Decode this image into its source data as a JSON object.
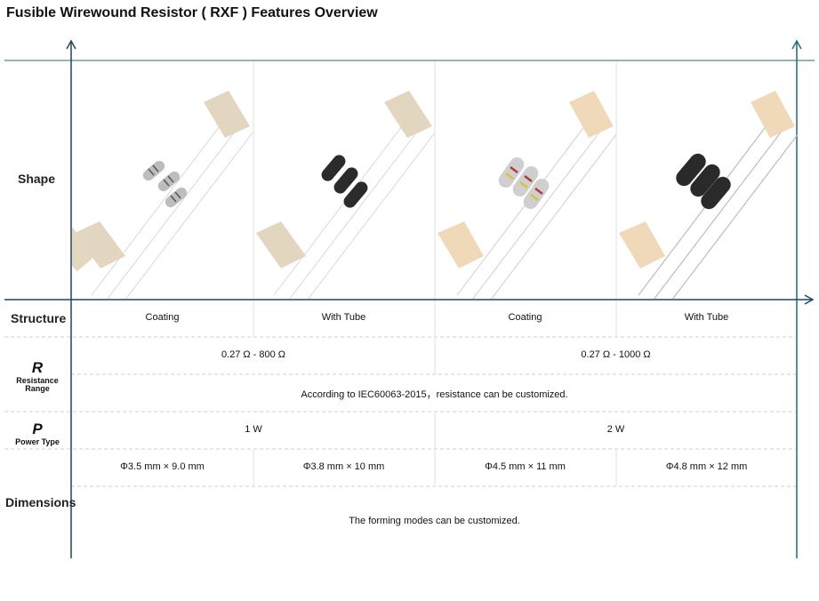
{
  "title": "Fusible Wirewound Resistor ( RXF ) Features Overview",
  "labels": {
    "shape": "Shape",
    "structure": "Structure",
    "resistance_symbol": "R",
    "resistance_line1": "Resistance",
    "resistance_line2": "Range",
    "power_symbol": "P",
    "power_label": "Power Type",
    "dimensions": "Dimensions"
  },
  "structure": [
    "Coating",
    "With Tube",
    "Coating",
    "With Tube"
  ],
  "resistance": [
    "0.27 Ω - 800 Ω",
    "0.27 Ω - 1000 Ω"
  ],
  "resistance_note": "According to IEC60063-2015，resistance can be customized.",
  "power": [
    "1 W",
    "2 W"
  ],
  "dimensions": [
    "Φ3.5 mm × 9.0 mm",
    "Φ3.8 mm × 10 mm",
    "Φ4.5 mm × 11 mm",
    "Φ4.8 mm × 12 mm"
  ],
  "dimensions_note": "The forming modes can be customized.",
  "product_images": [
    {
      "name": "coating-small-resistors",
      "body": "light-grey-banded",
      "tape": "tan"
    },
    {
      "name": "tube-small-resistors",
      "body": "black",
      "tape": "tan"
    },
    {
      "name": "coating-large-resistors",
      "body": "light-grey-banded",
      "tape": "orange-tan"
    },
    {
      "name": "tube-large-resistors",
      "body": "black",
      "tape": "orange-tan"
    }
  ],
  "colors": {
    "axis": "#1f4560",
    "teal_line": "#1d6f74",
    "divider": "#cfcfcf"
  }
}
